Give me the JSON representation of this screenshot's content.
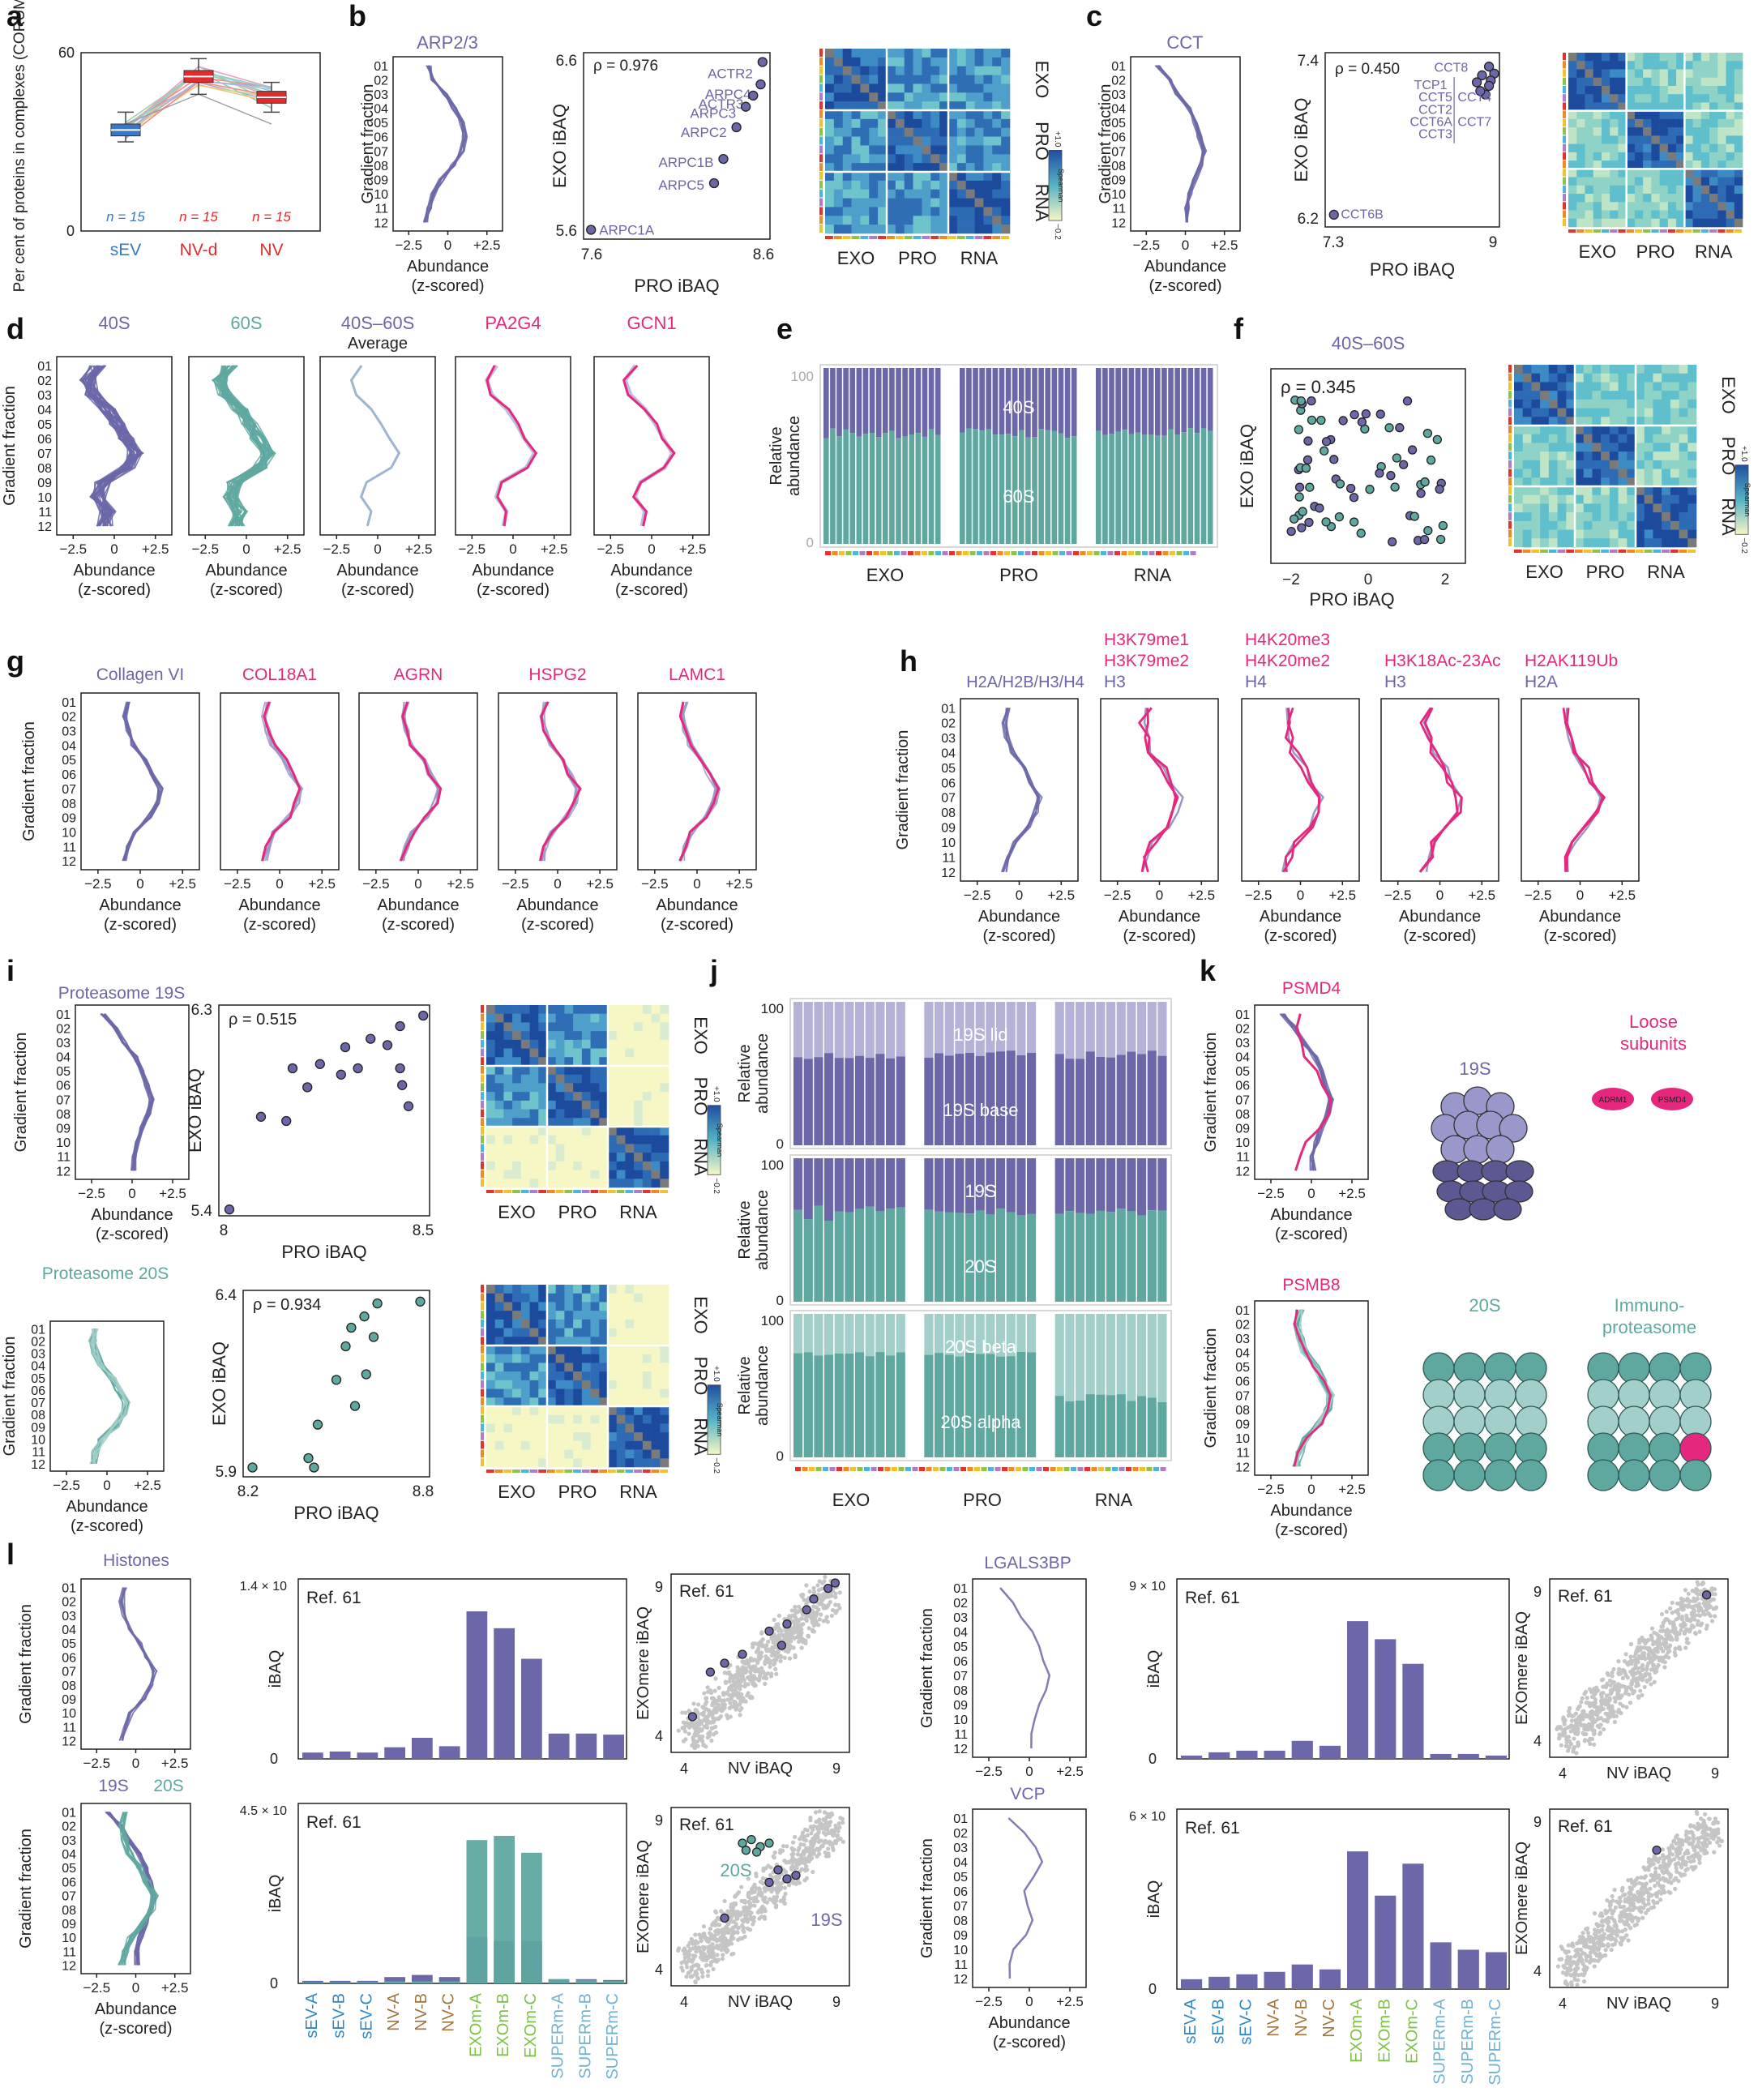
{
  "colors": {
    "purple": "#6b67a8",
    "lpurple": "#b4b2d6",
    "teal": "#5fa8a0",
    "lteal": "#a3cfca",
    "pink": "#e5287d",
    "red": "#e02c2c",
    "blue": "#3a77c4",
    "gray": "#c8c8c8",
    "dark": "#333333",
    "hmblue": "#1f4ea1",
    "hmyellow": "#f6f7c4",
    "hmteal": "#55b3c6"
  },
  "panels": [
    "a",
    "b",
    "c",
    "d",
    "e",
    "f",
    "g",
    "h",
    "i",
    "j",
    "k",
    "l"
  ],
  "a": {
    "ylabel": "Per cent of proteins in complexes (CORUM)",
    "y_ticks": [
      "60",
      "0"
    ],
    "groups": [
      {
        "name": "sEV",
        "n": "n = 15",
        "median": 34,
        "q1": 32,
        "q3": 36,
        "min": 30,
        "max": 40
      },
      {
        "name": "NV-d",
        "n": "n = 15",
        "median": 52,
        "q1": 50,
        "q3": 54,
        "min": 46,
        "max": 58
      },
      {
        "name": "NV",
        "n": "n = 15",
        "median": 45,
        "q1": 43,
        "q3": 47,
        "min": 40,
        "max": 50
      }
    ]
  },
  "common": {
    "abundance": "Abundance",
    "zscored": "(z-scored)",
    "gradient": "Gradient fraction",
    "pro_ibaq": "PRO iBAQ",
    "exo_ibaq": "EXO iBAQ",
    "ibaq": "iBAQ",
    "nv_ibaq": "NV iBAQ",
    "exomere_ibaq": "EXOmere iBAQ",
    "relative": "Relative",
    "abundance_word": "abundance",
    "spearman": "Spearman",
    "xticks": [
      "−2.5",
      "0",
      "+2.5"
    ],
    "fractions": [
      "01",
      "02",
      "03",
      "04",
      "05",
      "06",
      "07",
      "08",
      "09",
      "10",
      "11",
      "12"
    ],
    "blocks": [
      "EXO",
      "PRO",
      "RNA"
    ],
    "hm_ticks": [
      "+1.0",
      "−0.2"
    ],
    "ref": "Ref. 61"
  },
  "b": {
    "title": "ARP2/3",
    "rho": "ρ = 0.976",
    "ylim": [
      "6.6",
      "5.6"
    ],
    "xlim": [
      "7.6",
      "8.6"
    ],
    "labels": [
      "ACTR2",
      "ARPC4",
      "ACTR3",
      "ARPC3",
      "ARPC2",
      "ARPC1B",
      "ARPC5",
      "ARPC1A"
    ]
  },
  "c": {
    "title": "CCT",
    "rho": "ρ = 0.450",
    "ylim": [
      "7.4",
      "6.2"
    ],
    "xlim": [
      "7.3",
      "9"
    ],
    "labels": [
      "CCT8",
      "TCP1",
      "CCT5",
      "CCT2",
      "CCT6A",
      "CCT3",
      "CCT4",
      "CCT7",
      "CCT6B"
    ]
  },
  "d": {
    "titles": [
      "40S",
      "60S",
      "40S–60S",
      "PA2G4",
      "GCN1"
    ],
    "avg": "Average"
  },
  "e": {
    "top": "40S",
    "bottom": "60S",
    "yticks": [
      "100",
      "0"
    ]
  },
  "f": {
    "title": "40S–60S",
    "rho": "ρ = 0.345",
    "xticks": [
      "−2",
      "0",
      "2"
    ]
  },
  "g": {
    "titles": [
      "Collagen VI",
      "COL18A1",
      "AGRN",
      "HSPG2",
      "LAMC1"
    ]
  },
  "h": {
    "title0": "H2A/H2B/H3/H4",
    "t1": [
      "H3K79me1",
      "H3K79me2",
      "H3"
    ],
    "t2": [
      "H4K20me3",
      "H4K20me2",
      "H4"
    ],
    "t3": [
      "H3K18Ac-23Ac",
      "H3"
    ],
    "t4": [
      "H2AK119Ub",
      "H2A"
    ]
  },
  "i": {
    "title19": "Proteasome 19S",
    "title20": "Proteasome 20S",
    "rho19": "ρ = 0.515",
    "rho20": "ρ = 0.934",
    "y19": [
      "6.3",
      "5.4"
    ],
    "x19": [
      "8",
      "8.5"
    ],
    "y20": [
      "6.4",
      "5.9"
    ],
    "x20": [
      "8.2",
      "8.8"
    ]
  },
  "j": {
    "p1": [
      "19S lid",
      "19S base"
    ],
    "p2": [
      "19S",
      "20S"
    ],
    "p3": [
      "20S beta",
      "20S alpha"
    ],
    "yticks": [
      "100",
      "0"
    ]
  },
  "k": {
    "t1": "PSMD4",
    "t2": "PSMB8",
    "s19": "19S",
    "s20": "20S",
    "loose": [
      "Loose",
      "subunits"
    ],
    "immuno": [
      "Immuno-",
      "proteasome"
    ],
    "adrm1": "ADRM1",
    "psmd4": "PSMD4"
  },
  "l": {
    "histones": "Histones",
    "s19": "19S",
    "s20": "20S",
    "lgals": "LGALS3BP",
    "vcp": "VCP",
    "ymax": [
      "1.4 × 10",
      "4.5 × 10",
      "9 × 10",
      "6 × 10"
    ],
    "exps": [
      "10",
      "9",
      "8",
      "8"
    ],
    "scat_ticks": [
      "4",
      "9"
    ],
    "cats": [
      "sEV-A",
      "sEV-B",
      "sEV-C",
      "NV-A",
      "NV-B",
      "NV-C",
      "EXOm-A",
      "EXOm-B",
      "EXOm-C",
      "SUPERm-A",
      "SUPERm-B",
      "SUPERm-C"
    ],
    "cat_colors": [
      "#2f86c7",
      "#2f86c7",
      "#2f86c7",
      "#a0743c",
      "#a0743c",
      "#a0743c",
      "#7cc242",
      "#7cc242",
      "#7cc242",
      "#6fb2d6",
      "#6fb2d6",
      "#6fb2d6"
    ]
  },
  "chart_data": [
    {
      "type": "bar",
      "title": "Histones",
      "ylabel": "iBAQ",
      "categories": [
        "sEV-A",
        "sEV-B",
        "sEV-C",
        "NV-A",
        "NV-B",
        "NV-C",
        "EXOm-A",
        "EXOm-B",
        "EXOm-C",
        "SUPERm-A",
        "SUPERm-B",
        "SUPERm-C"
      ],
      "values": [
        0.06,
        0.07,
        0.06,
        0.11,
        0.2,
        0.12,
        1.4,
        1.24,
        0.95,
        0.24,
        0.24,
        0.23
      ],
      "ylim": [
        0,
        1.4
      ]
    },
    {
      "type": "bar",
      "title": "19S / 20S",
      "ylabel": "iBAQ",
      "categories": [
        "sEV-A",
        "sEV-B",
        "sEV-C",
        "NV-A",
        "NV-B",
        "NV-C",
        "EXOm-A",
        "EXOm-B",
        "EXOm-C",
        "SUPERm-A",
        "SUPERm-B",
        "SUPERm-C"
      ],
      "series": [
        {
          "name": "19S",
          "values": [
            0.06,
            0.06,
            0.06,
            0.15,
            0.2,
            0.15,
            1.1,
            1.0,
            1.0,
            0.1,
            0.1,
            0.08
          ]
        },
        {
          "name": "20S",
          "values": [
            0.02,
            0.02,
            0.03,
            0.05,
            0.05,
            0.05,
            3.4,
            3.5,
            3.1,
            0.1,
            0.08,
            0.06
          ]
        }
      ]
    },
    {
      "type": "bar",
      "title": "LGALS3BP",
      "ylabel": "iBAQ",
      "categories": [
        "sEV-A",
        "sEV-B",
        "sEV-C",
        "NV-A",
        "NV-B",
        "NV-C",
        "EXOm-A",
        "EXOm-B",
        "EXOm-C",
        "SUPERm-A",
        "SUPERm-B",
        "SUPERm-C"
      ],
      "values": [
        0.2,
        0.4,
        0.5,
        0.5,
        1.1,
        0.8,
        8.4,
        7.3,
        5.8,
        0.3,
        0.3,
        0.2
      ],
      "ylim": [
        0,
        9
      ]
    },
    {
      "type": "bar",
      "title": "VCP",
      "ylabel": "iBAQ",
      "categories": [
        "sEV-A",
        "sEV-B",
        "sEV-C",
        "NV-A",
        "NV-B",
        "NV-C",
        "EXOm-A",
        "EXOm-B",
        "EXOm-C",
        "SUPERm-A",
        "SUPERm-B",
        "SUPERm-C"
      ],
      "values": [
        0.4,
        0.5,
        0.6,
        0.7,
        1.0,
        0.8,
        5.6,
        3.8,
        5.1,
        1.9,
        1.6,
        1.5
      ],
      "ylim": [
        0,
        6
      ]
    }
  ]
}
